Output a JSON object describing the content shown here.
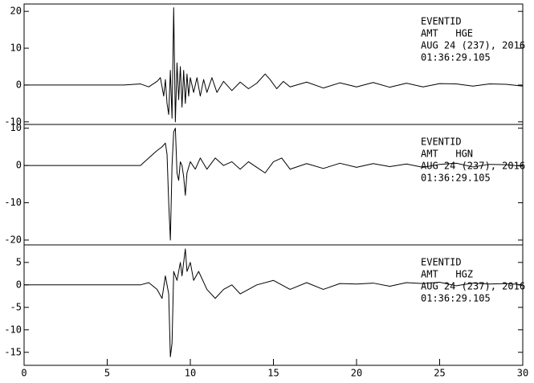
{
  "chart_data": [
    {
      "type": "line",
      "color": "#000000",
      "xlim": [
        0,
        30
      ],
      "ylim": [
        -10.7,
        22
      ],
      "yticks": [
        -10,
        0,
        10,
        20
      ],
      "annotations": [
        "EVENTID",
        "AMT   HGE",
        "AUG 24 (237), 2016",
        "01:36:29.105"
      ],
      "x": [
        0,
        6,
        7,
        7.5,
        8,
        8.2,
        8.4,
        8.5,
        8.6,
        8.7,
        8.8,
        8.9,
        9.0,
        9.1,
        9.2,
        9.3,
        9.4,
        9.5,
        9.6,
        9.7,
        9.8,
        9.9,
        10.0,
        10.2,
        10.4,
        10.6,
        10.8,
        11.0,
        11.3,
        11.6,
        12,
        12.5,
        13,
        13.5,
        14,
        14.5,
        14.8,
        15.2,
        15.6,
        16,
        17,
        18,
        19,
        20,
        21,
        22,
        23,
        24,
        25,
        26,
        27,
        28,
        29,
        30
      ],
      "values": [
        0,
        0,
        0.3,
        -0.5,
        1,
        2,
        -3,
        1.5,
        -5,
        -8,
        4,
        -9,
        21,
        -10,
        6,
        -4,
        5,
        -6,
        4,
        -5,
        3,
        -3,
        2,
        -2,
        2,
        -3,
        1.5,
        -2,
        2,
        -2,
        1,
        -1.5,
        0.8,
        -1,
        0.5,
        3,
        1.5,
        -1,
        1,
        -0.5,
        0.8,
        -0.8,
        0.6,
        -0.5,
        0.7,
        -0.6,
        0.5,
        -0.5,
        0.4,
        0.3,
        -0.3,
        0.3,
        0.2,
        -0.3
      ]
    },
    {
      "type": "line",
      "color": "#000000",
      "xlim": [
        0,
        30
      ],
      "ylim": [
        -21.3,
        11
      ],
      "yticks": [
        -20,
        -10,
        0,
        10
      ],
      "annotations": [
        "EVENTID",
        "AMT   HGN",
        "AUG 24 (237), 2016",
        "01:36:29.105"
      ],
      "x": [
        0,
        7,
        7.5,
        8,
        8.3,
        8.5,
        8.6,
        8.7,
        8.8,
        8.9,
        9.0,
        9.1,
        9.2,
        9.3,
        9.4,
        9.5,
        9.6,
        9.7,
        9.8,
        10.0,
        10.3,
        10.6,
        11,
        11.5,
        12,
        12.5,
        13,
        13.5,
        14,
        14.5,
        15,
        15.5,
        16,
        17,
        18,
        19,
        20,
        21,
        22,
        23,
        24,
        25,
        26,
        27,
        28,
        29,
        30
      ],
      "values": [
        0,
        0,
        2,
        4,
        5,
        6,
        3,
        -10,
        -20,
        0,
        9,
        10,
        -2,
        -4,
        1,
        0,
        -3,
        -8,
        -2,
        1,
        -1,
        2,
        -1,
        2,
        0,
        1,
        -1,
        1,
        -0.5,
        -2,
        1,
        2,
        -1,
        0.5,
        -0.8,
        0.6,
        -0.5,
        0.5,
        -0.3,
        0.4,
        -0.5,
        0.3,
        0.6,
        -0.4,
        0.3,
        0.2,
        -0.2
      ]
    },
    {
      "type": "line",
      "color": "#000000",
      "xlim": [
        0,
        30
      ],
      "ylim": [
        -17.9,
        8.9
      ],
      "yticks": [
        -15,
        -10,
        -5,
        0,
        5
      ],
      "xticks": [
        0,
        5,
        10,
        15,
        20,
        25,
        30
      ],
      "annotations": [
        "EVENTID",
        "AMT   HGZ",
        "AUG 24 (237), 2016",
        "01:36:29.105"
      ],
      "x": [
        0,
        7,
        7.5,
        8,
        8.3,
        8.5,
        8.7,
        8.8,
        8.9,
        9.0,
        9.2,
        9.4,
        9.5,
        9.7,
        9.8,
        10.0,
        10.2,
        10.5,
        11,
        11.5,
        12,
        12.5,
        13,
        14,
        15,
        16,
        17,
        18,
        19,
        20,
        21,
        22,
        23,
        24,
        25,
        26,
        27,
        28,
        29,
        30
      ],
      "values": [
        0,
        0,
        0.5,
        -1,
        -3,
        2,
        -2,
        -16,
        -13,
        3,
        1,
        5,
        2,
        8,
        3,
        5,
        1,
        3,
        -1,
        -3,
        -1,
        0,
        -2,
        0,
        1,
        -1,
        0.5,
        -1,
        0.3,
        0.2,
        0.4,
        -0.3,
        0.5,
        0.3,
        0.6,
        -0.2,
        0.4,
        0.2,
        0.3,
        0
      ]
    }
  ]
}
